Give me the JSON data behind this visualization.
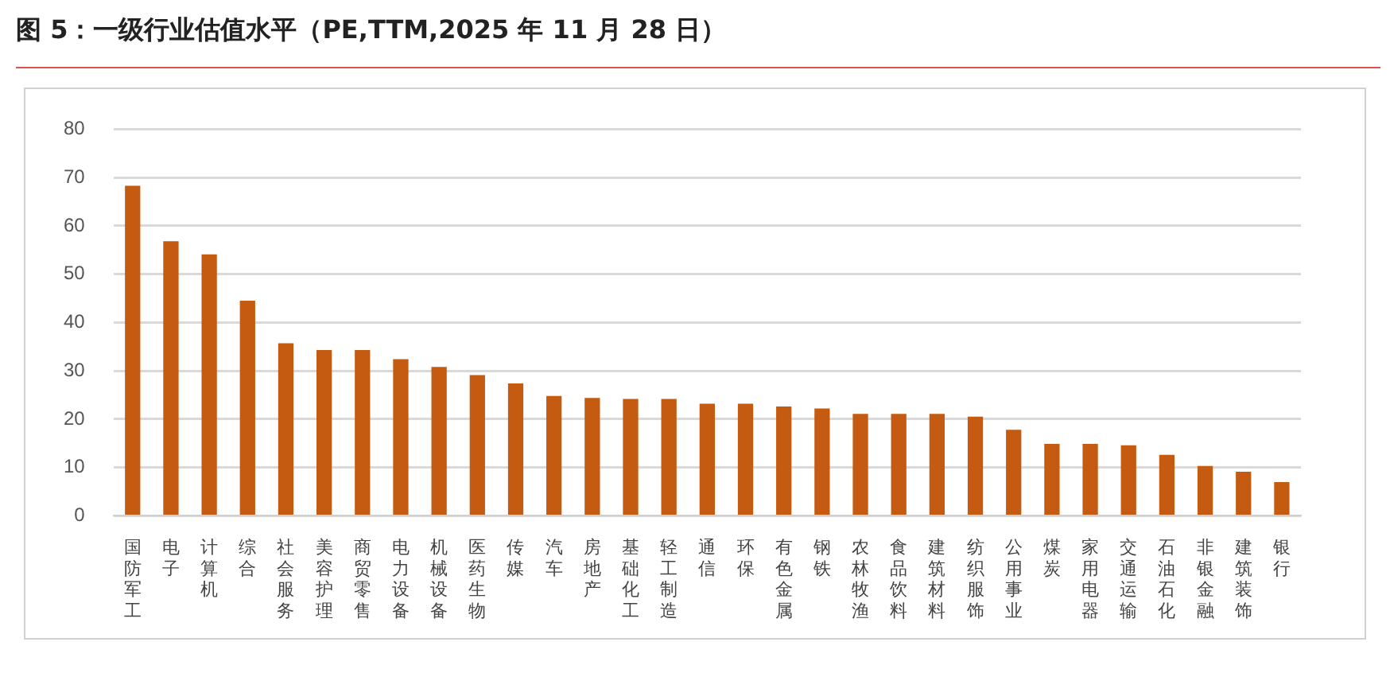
{
  "chart_data": {
    "type": "bar",
    "title": "图 5：一级行业估值水平（PE,TTM,2025 年 11 月 28 日）",
    "categories": [
      "国防军工",
      "电子",
      "计算机",
      "综合",
      "社会服务",
      "美容护理",
      "商贸零售",
      "电力设备",
      "机械设备",
      "医药生物",
      "传媒",
      "汽车",
      "房地产",
      "基础化工",
      "轻工制造",
      "通信",
      "环保",
      "有色金属",
      "钢铁",
      "农林牧渔",
      "食品饮料",
      "建筑材料",
      "纺织服饰",
      "公用事业",
      "煤炭",
      "家用电器",
      "交通运输",
      "石油石化",
      "非银金融",
      "建筑装饰",
      "银行"
    ],
    "values": [
      68.3,
      56.8,
      54.1,
      44.5,
      35.7,
      34.3,
      34.3,
      32.4,
      30.8,
      29.1,
      27.4,
      24.8,
      24.4,
      24.2,
      24.2,
      23.2,
      23.2,
      22.6,
      22.2,
      21.1,
      21.1,
      21.1,
      20.5,
      17.8,
      14.9,
      14.9,
      14.6,
      12.6,
      10.3,
      9.1,
      7.0
    ],
    "color": "#c55a11",
    "ylim": [
      0,
      80
    ],
    "yticks": [
      0,
      10,
      20,
      30,
      40,
      50,
      60,
      70,
      80
    ],
    "grid": "y",
    "legend": false
  }
}
